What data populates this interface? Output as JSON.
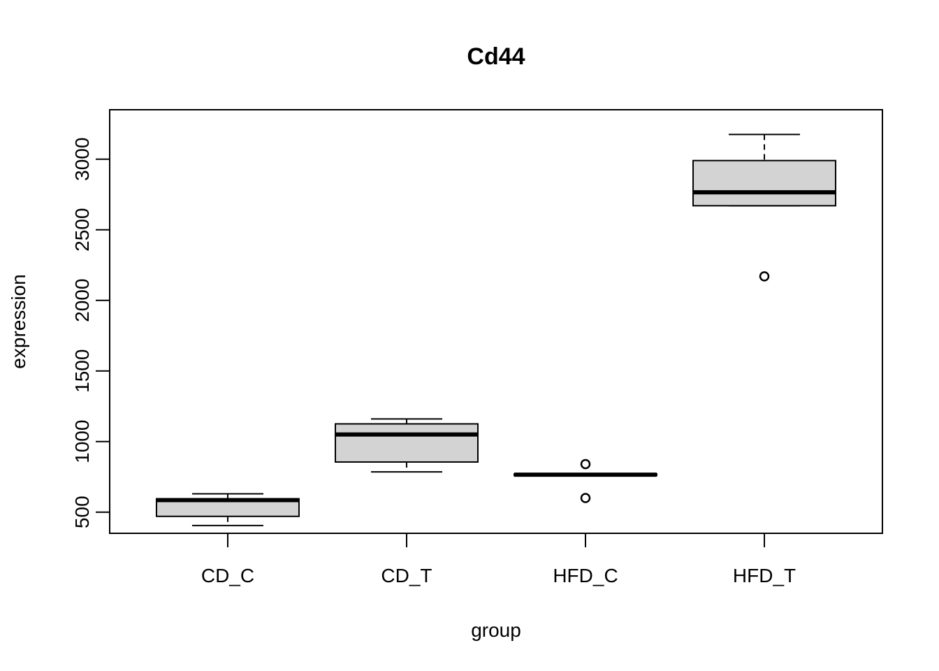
{
  "chart_data": {
    "type": "boxplot",
    "title": "Cd44",
    "xlabel": "group",
    "ylabel": "expression",
    "ylim": [
      350,
      3350
    ],
    "yticks": [
      500,
      1000,
      1500,
      2000,
      2500,
      3000
    ],
    "grid": false,
    "categories": [
      "CD_C",
      "CD_T",
      "HFD_C",
      "HFD_T"
    ],
    "box_color": "#d3d3d3",
    "boxes": [
      {
        "name": "CD_C",
        "min": 405,
        "q1": 470,
        "median": 585,
        "q3": 595,
        "max": 630,
        "outliers": []
      },
      {
        "name": "CD_T",
        "min": 785,
        "q1": 855,
        "median": 1050,
        "q3": 1125,
        "max": 1160,
        "outliers": []
      },
      {
        "name": "HFD_C",
        "min": 760,
        "q1": 760,
        "median": 765,
        "q3": 770,
        "max": 770,
        "outliers": [
          840,
          600
        ]
      },
      {
        "name": "HFD_T",
        "min": 2670,
        "q1": 2670,
        "median": 2765,
        "q3": 2990,
        "max": 3175,
        "outliers": [
          2170
        ]
      }
    ]
  }
}
